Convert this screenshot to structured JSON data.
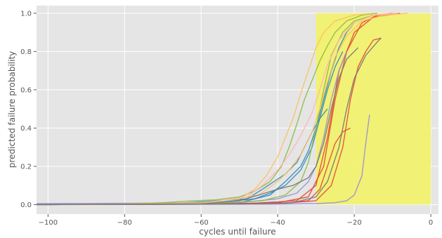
{
  "chart_data": {
    "type": "line",
    "title": "",
    "xlabel": "cycles until failure",
    "ylabel": "predicted failure probability",
    "xlim": [
      -103,
      2
    ],
    "ylim": [
      -0.05,
      1.04
    ],
    "xticks": [
      -100,
      -80,
      -60,
      -40,
      -20,
      0
    ],
    "xtick_labels": [
      "−100",
      "−80",
      "−60",
      "−40",
      "−20",
      "0"
    ],
    "yticks": [
      0.0,
      0.2,
      0.4,
      0.6,
      0.8,
      1.0
    ],
    "ytick_labels": [
      "0.0",
      "0.2",
      "0.4",
      "0.6",
      "0.8",
      "1.0"
    ],
    "grid": true,
    "style": "ggplot",
    "highlight_region": {
      "x0": -30,
      "x1": 0,
      "y0": 0,
      "y1": 1.0,
      "color": "#f2f26b"
    },
    "series": [
      {
        "color": "#e24a33",
        "values": [
          [
            -103,
            0
          ],
          [
            -60,
            0.002
          ],
          [
            -40,
            0.01
          ],
          [
            -32,
            0.04
          ],
          [
            -28,
            0.2
          ],
          [
            -25,
            0.55
          ],
          [
            -22,
            0.8
          ],
          [
            -18,
            0.95
          ],
          [
            -14,
            0.99
          ],
          [
            -10,
            1.0
          ]
        ]
      },
      {
        "color": "#e24a33",
        "values": [
          [
            -103,
            0
          ],
          [
            -50,
            0.003
          ],
          [
            -35,
            0.02
          ],
          [
            -30,
            0.1
          ],
          [
            -27,
            0.35
          ],
          [
            -24,
            0.7
          ],
          [
            -20,
            0.9
          ],
          [
            -15,
            0.98
          ],
          [
            -8,
            1.0
          ]
        ]
      },
      {
        "color": "#e24a33",
        "values": [
          [
            -103,
            0
          ],
          [
            -40,
            0.005
          ],
          [
            -30,
            0.02
          ],
          [
            -26,
            0.1
          ],
          [
            -23,
            0.3
          ],
          [
            -21,
            0.55
          ],
          [
            -19,
            0.72
          ],
          [
            -17,
            0.8
          ],
          [
            -15,
            0.86
          ],
          [
            -13,
            0.87
          ]
        ]
      },
      {
        "color": "#e24a33",
        "values": [
          [
            -103,
            0
          ],
          [
            -40,
            0.003
          ],
          [
            -32,
            0.02
          ],
          [
            -29,
            0.08
          ],
          [
            -27,
            0.2
          ],
          [
            -25,
            0.32
          ],
          [
            -23,
            0.38
          ],
          [
            -21,
            0.4
          ]
        ]
      },
      {
        "color": "#348abd",
        "values": [
          [
            -103,
            0
          ],
          [
            -70,
            0.003
          ],
          [
            -50,
            0.01
          ],
          [
            -42,
            0.05
          ],
          [
            -38,
            0.12
          ],
          [
            -34,
            0.2
          ],
          [
            -32,
            0.28
          ],
          [
            -30,
            0.4
          ],
          [
            -28,
            0.55
          ],
          [
            -26,
            0.7
          ],
          [
            -24,
            0.82
          ],
          [
            -22,
            0.9
          ],
          [
            -20,
            0.95
          ]
        ]
      },
      {
        "color": "#348abd",
        "values": [
          [
            -103,
            0
          ],
          [
            -60,
            0.003
          ],
          [
            -46,
            0.03
          ],
          [
            -42,
            0.06
          ],
          [
            -38,
            0.1
          ],
          [
            -34,
            0.18
          ],
          [
            -31,
            0.3
          ],
          [
            -29,
            0.45
          ],
          [
            -27,
            0.6
          ],
          [
            -25,
            0.72
          ],
          [
            -23,
            0.8
          ]
        ]
      },
      {
        "color": "#348abd",
        "values": [
          [
            -103,
            0
          ],
          [
            -70,
            0.002
          ],
          [
            -48,
            0.03
          ],
          [
            -44,
            0.08
          ],
          [
            -41,
            0.12
          ],
          [
            -38,
            0.16
          ],
          [
            -35,
            0.22
          ],
          [
            -33,
            0.3
          ],
          [
            -31,
            0.38
          ],
          [
            -29,
            0.45
          ],
          [
            -27,
            0.5
          ]
        ]
      },
      {
        "color": "#988ed5",
        "values": [
          [
            -103,
            0.005
          ],
          [
            -90,
            0.006
          ],
          [
            -70,
            0.008
          ],
          [
            -50,
            0.01
          ],
          [
            -40,
            0.03
          ],
          [
            -35,
            0.06
          ],
          [
            -32,
            0.12
          ],
          [
            -30,
            0.2
          ],
          [
            -28,
            0.35
          ],
          [
            -26,
            0.55
          ],
          [
            -24,
            0.7
          ],
          [
            -22,
            0.8
          ]
        ]
      },
      {
        "color": "#988ed5",
        "values": [
          [
            -103,
            0
          ],
          [
            -40,
            0.002
          ],
          [
            -30,
            0.005
          ],
          [
            -25,
            0.01
          ],
          [
            -22,
            0.02
          ],
          [
            -20,
            0.05
          ],
          [
            -18,
            0.15
          ],
          [
            -17,
            0.32
          ],
          [
            -16,
            0.47
          ]
        ]
      },
      {
        "color": "#8eba42",
        "values": [
          [
            -103,
            0
          ],
          [
            -80,
            0.003
          ],
          [
            -70,
            0.01
          ],
          [
            -62,
            0.02
          ],
          [
            -56,
            0.025
          ],
          [
            -50,
            0.04
          ],
          [
            -46,
            0.07
          ],
          [
            -42,
            0.12
          ],
          [
            -39,
            0.2
          ],
          [
            -37,
            0.3
          ],
          [
            -35,
            0.42
          ],
          [
            -33,
            0.55
          ],
          [
            -31,
            0.65
          ],
          [
            -29,
            0.75
          ],
          [
            -27,
            0.83
          ],
          [
            -25,
            0.9
          ],
          [
            -22,
            0.96
          ],
          [
            -18,
            0.99
          ],
          [
            -14,
            1.0
          ]
        ]
      },
      {
        "color": "#8eba42",
        "values": [
          [
            -103,
            0
          ],
          [
            -60,
            0.003
          ],
          [
            -44,
            0.02
          ],
          [
            -38,
            0.05
          ],
          [
            -34,
            0.12
          ],
          [
            -32,
            0.22
          ],
          [
            -30,
            0.4
          ],
          [
            -28,
            0.6
          ],
          [
            -26,
            0.78
          ],
          [
            -23,
            0.9
          ],
          [
            -20,
            0.96
          ],
          [
            -15,
            0.99
          ]
        ]
      },
      {
        "color": "#fbc15e",
        "values": [
          [
            -103,
            0
          ],
          [
            -70,
            0.005
          ],
          [
            -60,
            0.01
          ],
          [
            -50,
            0.03
          ],
          [
            -46,
            0.08
          ],
          [
            -43,
            0.15
          ],
          [
            -40,
            0.25
          ],
          [
            -38,
            0.35
          ],
          [
            -36,
            0.45
          ],
          [
            -34,
            0.58
          ],
          [
            -32,
            0.7
          ],
          [
            -30,
            0.82
          ],
          [
            -28,
            0.9
          ],
          [
            -25,
            0.96
          ],
          [
            -20,
            0.99
          ],
          [
            -15,
            1.0
          ]
        ]
      },
      {
        "color": "#fbc15e",
        "values": [
          [
            -103,
            0
          ],
          [
            -60,
            0.005
          ],
          [
            -45,
            0.05
          ],
          [
            -40,
            0.12
          ],
          [
            -37,
            0.18
          ],
          [
            -34,
            0.26
          ],
          [
            -31,
            0.38
          ],
          [
            -29,
            0.5
          ],
          [
            -27,
            0.64
          ],
          [
            -25,
            0.77
          ],
          [
            -22,
            0.88
          ],
          [
            -18,
            0.96
          ],
          [
            -12,
            0.99
          ],
          [
            -6,
            1.0
          ]
        ]
      },
      {
        "color": "#ffb5b8",
        "values": [
          [
            -103,
            0
          ],
          [
            -60,
            0.004
          ],
          [
            -48,
            0.04
          ],
          [
            -44,
            0.1
          ],
          [
            -40,
            0.18
          ],
          [
            -37,
            0.26
          ],
          [
            -34,
            0.36
          ],
          [
            -31,
            0.48
          ],
          [
            -29,
            0.6
          ],
          [
            -27,
            0.73
          ],
          [
            -24,
            0.86
          ],
          [
            -20,
            0.95
          ],
          [
            -15,
            0.99
          ],
          [
            -9,
            1.0
          ]
        ]
      },
      {
        "color": "#777777",
        "values": [
          [
            -103,
            0
          ],
          [
            -60,
            0.004
          ],
          [
            -50,
            0.02
          ],
          [
            -45,
            0.05
          ],
          [
            -40,
            0.08
          ],
          [
            -36,
            0.1
          ],
          [
            -32,
            0.14
          ],
          [
            -30,
            0.2
          ],
          [
            -28,
            0.32
          ],
          [
            -26,
            0.5
          ],
          [
            -24,
            0.66
          ],
          [
            -22,
            0.76
          ],
          [
            -19,
            0.82
          ]
        ]
      },
      {
        "color": "#777777",
        "values": [
          [
            -103,
            0
          ],
          [
            -50,
            0.003
          ],
          [
            -36,
            0.01
          ],
          [
            -30,
            0.04
          ],
          [
            -27,
            0.12
          ],
          [
            -24,
            0.3
          ],
          [
            -22,
            0.5
          ],
          [
            -20,
            0.66
          ],
          [
            -17,
            0.78
          ],
          [
            -14,
            0.85
          ],
          [
            -13,
            0.87
          ]
        ]
      }
    ]
  }
}
